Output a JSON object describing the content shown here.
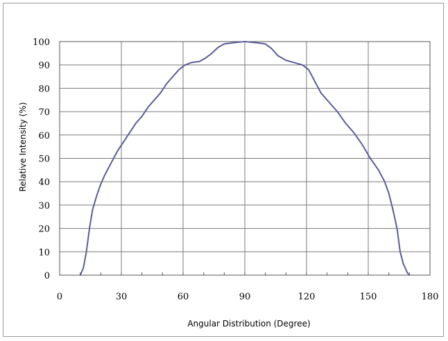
{
  "chart_data": {
    "type": "line",
    "xlabel": "Angular Distribution (Degree)",
    "ylabel": "Relative Intensity (%)",
    "xlim": [
      0,
      180
    ],
    "ylim": [
      0,
      100
    ],
    "x_ticks": [
      "0",
      "30",
      "60",
      "90",
      "120",
      "150",
      "180"
    ],
    "y_ticks": [
      "0",
      "10",
      "20",
      "30",
      "40",
      "50",
      "60",
      "70",
      "80",
      "90",
      "100"
    ],
    "grid": true,
    "legend": "none",
    "series": [
      {
        "color": "#5b5b9a",
        "points": [
          [
            10,
            0
          ],
          [
            11.5,
            3
          ],
          [
            13,
            10
          ],
          [
            14.5,
            20
          ],
          [
            16,
            28
          ],
          [
            18,
            34
          ],
          [
            20,
            39
          ],
          [
            22,
            43
          ],
          [
            25,
            48
          ],
          [
            28,
            53
          ],
          [
            31,
            57
          ],
          [
            34,
            61
          ],
          [
            37,
            65
          ],
          [
            40,
            68
          ],
          [
            43,
            72
          ],
          [
            46,
            75
          ],
          [
            49,
            78
          ],
          [
            52,
            82
          ],
          [
            55,
            85
          ],
          [
            58,
            88
          ],
          [
            61,
            90
          ],
          [
            64,
            91
          ],
          [
            68,
            91.5
          ],
          [
            71,
            93
          ],
          [
            74,
            95
          ],
          [
            77,
            97.5
          ],
          [
            80,
            99
          ],
          [
            84,
            99.5
          ],
          [
            90,
            100
          ],
          [
            96,
            99.5
          ],
          [
            100,
            99
          ],
          [
            103,
            97
          ],
          [
            106,
            94
          ],
          [
            110,
            92
          ],
          [
            114,
            91
          ],
          [
            118,
            90
          ],
          [
            121,
            88
          ],
          [
            124,
            83
          ],
          [
            127,
            78
          ],
          [
            131,
            74
          ],
          [
            135,
            70
          ],
          [
            139,
            65
          ],
          [
            143,
            61
          ],
          [
            147,
            56
          ],
          [
            151,
            50
          ],
          [
            155,
            45
          ],
          [
            158,
            40
          ],
          [
            160,
            35
          ],
          [
            162,
            28
          ],
          [
            164,
            20
          ],
          [
            165.5,
            10
          ],
          [
            167,
            5
          ],
          [
            169,
            1
          ],
          [
            170,
            0
          ]
        ]
      }
    ]
  }
}
